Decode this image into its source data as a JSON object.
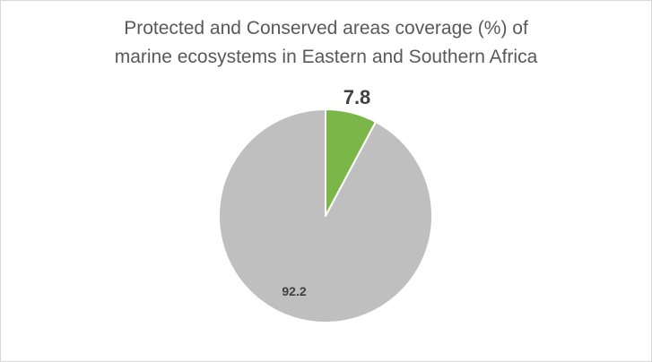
{
  "chart_data": {
    "type": "pie",
    "title_lines": [
      "Protected and Conserved areas coverage (%) of",
      "marine ecosystems in Eastern and Southern Africa"
    ],
    "slices": [
      {
        "label": "7.8",
        "value": 7.8,
        "color": "#7ab648"
      },
      {
        "label": "92.2",
        "value": 92.2,
        "color": "#bfbfbf"
      }
    ],
    "start_angle": "12 o'clock",
    "direction": "clockwise",
    "legend": "none",
    "colors": {
      "border": "#d9d9d9",
      "slice_edge": "#ffffff",
      "title": "#595959",
      "label": "#404040"
    }
  }
}
